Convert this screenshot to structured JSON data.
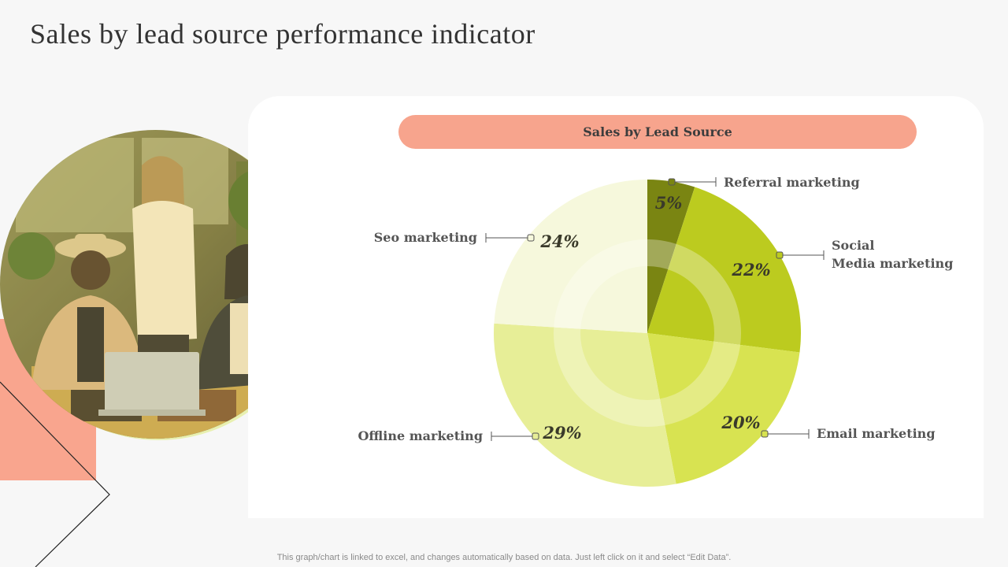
{
  "page": {
    "title": "Sales by lead source performance indicator",
    "footer_note": "This graph/chart is linked to excel, and changes automatically based on data. Just left click on it and select “Edit Data”."
  },
  "chart_data": {
    "type": "pie",
    "title": "Sales by Lead Source",
    "slices": [
      {
        "label": "Referral marketing",
        "value": 5,
        "value_label": "5%",
        "color": "#7a8512"
      },
      {
        "label": "Social Media marketing",
        "value": 22,
        "value_label": "22%",
        "color": "#bccb1f"
      },
      {
        "label": "Email marketing",
        "value": 20,
        "value_label": "20%",
        "color": "#d8e351"
      },
      {
        "label": "Offline marketing",
        "value": 29,
        "value_label": "29%",
        "color": "#e7ee97"
      },
      {
        "label": "Seo marketing",
        "value": 24,
        "value_label": "24%",
        "color": "#f6f8dc"
      }
    ]
  }
}
